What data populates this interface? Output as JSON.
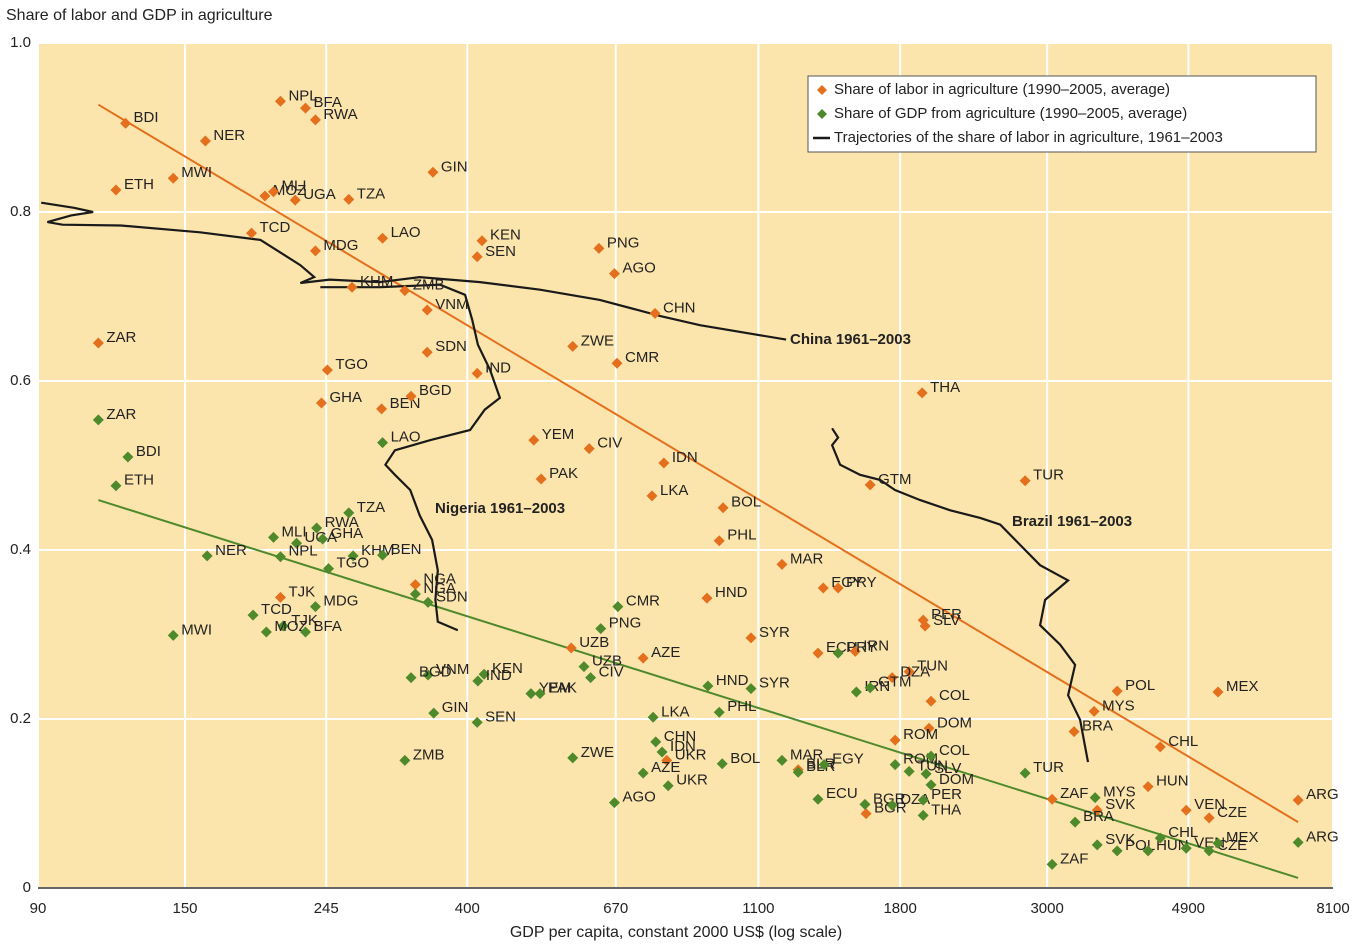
{
  "chart_data": {
    "type": "scatter",
    "y_label": "Share of labor and GDP in agriculture",
    "x_label": "GDP per capita, constant 2000 US$ (log scale)",
    "x_log": true,
    "xlim": [
      90,
      8100
    ],
    "xticks": [
      90,
      150,
      245,
      400,
      670,
      1100,
      1800,
      3000,
      4900,
      8100
    ],
    "ylim": [
      0,
      1
    ],
    "yticks": [
      0,
      0.2,
      0.4,
      0.6,
      0.8,
      {
        "value": 1,
        "label": "1.0"
      }
    ],
    "grid": true,
    "background": "#fce5ad",
    "legend": "top-right",
    "series": [
      {
        "name": "Share of labor in agriculture (1990–2005, average)",
        "color": "#e4701e",
        "labels": [
          "BDI",
          "NPL",
          "BFA",
          "RWA",
          "NER",
          "ETH",
          "MWI",
          "MOZ",
          "MLI",
          "UGA",
          "TZA",
          "GIN",
          "TCD",
          "MDG",
          "LAO",
          "KEN",
          "SEN",
          "PNG",
          "AGO",
          "KHM",
          "ZMB",
          "VNM",
          "CHN",
          "ZAR",
          "SDN",
          "ZWE",
          "CMR",
          "IND",
          "TGO",
          "THA",
          "GHA",
          "BEN",
          "BGD",
          "YEM",
          "CIV",
          "IDN",
          "PAK",
          "GTM",
          "TUR",
          "LKA",
          "BOL",
          "PHL",
          "MAR",
          "EGY",
          "PRY",
          "HND",
          "NGA",
          "TJK",
          "PER",
          "SLV",
          "SYR",
          "UZB",
          "AZE",
          "ECU",
          "IRN",
          "TUN",
          "DZA",
          "COL",
          "DOM",
          "ROM",
          "MYS",
          "POL",
          "MEX",
          "BRA",
          "CHL",
          "BLR",
          "UKR",
          "HUN",
          "ZAF",
          "SVK",
          "VEN",
          "CZE",
          "ARG",
          "BGR"
        ],
        "x": [
          122,
          209,
          228,
          236,
          161,
          118,
          144,
          198,
          204,
          220,
          265,
          355,
          189,
          236,
          298,
          421,
          414,
          632,
          667,
          268,
          322,
          348,
          768,
          111,
          348,
          577,
          673,
          414,
          246,
          1943,
          241,
          297,
          329,
          504,
          611,
          792,
          517,
          1622,
          2779,
          760,
          973,
          960,
          1194,
          1378,
          1451,
          920,
          334,
          209,
          1950,
          1963,
          1072,
          574,
          737,
          1353,
          1540,
          1857,
          1751,
          2004,
          1990,
          1769,
          3532,
          3826,
          5432,
          3294,
          4444,
          1263,
          800,
          4260,
          3052,
          3570,
          4864,
          5267,
          7176,
          1599
        ],
        "values": [
          0.905,
          0.931,
          0.923,
          0.909,
          0.884,
          0.826,
          0.84,
          0.819,
          0.824,
          0.814,
          0.815,
          0.847,
          0.775,
          0.754,
          0.769,
          0.766,
          0.747,
          0.757,
          0.727,
          0.711,
          0.707,
          0.684,
          0.68,
          0.645,
          0.634,
          0.641,
          0.621,
          0.609,
          0.613,
          0.586,
          0.574,
          0.567,
          0.582,
          0.53,
          0.52,
          0.503,
          0.484,
          0.477,
          0.482,
          0.464,
          0.45,
          0.411,
          0.383,
          0.355,
          0.355,
          0.343,
          0.359,
          0.344,
          0.317,
          0.31,
          0.296,
          0.284,
          0.272,
          0.278,
          0.28,
          0.256,
          0.249,
          0.221,
          0.189,
          0.175,
          0.209,
          0.233,
          0.232,
          0.185,
          0.167,
          0.14,
          0.151,
          0.12,
          0.105,
          0.092,
          0.092,
          0.083,
          0.104,
          0.088
        ]
      },
      {
        "name": "Share of GDP from agriculture (1990–2005, average)",
        "color": "#4e8a2c",
        "labels": [
          "ZAR",
          "BDI",
          "ETH",
          "NER",
          "MWI",
          "UGA",
          "RWA",
          "TZA",
          "MLI",
          "GHA",
          "NPL",
          "KHM",
          "BEN",
          "TGO",
          "LAO",
          "TCD",
          "TJK",
          "MOZ",
          "MDG",
          "BFA",
          "SDN",
          "NGA",
          "CMR",
          "PNG",
          "UZB",
          "CIV",
          "KEN",
          "IND",
          "VNM",
          "BGD",
          "GIN",
          "YEM",
          "PAK",
          "SEN",
          "ZMB",
          "ZWE",
          "HND",
          "SYR",
          "PHL",
          "LKA",
          "CHN",
          "IDN",
          "UKR",
          "AZE",
          "AGO",
          "BOL",
          "MAR",
          "BLR",
          "EGY",
          "ECU",
          "PRY",
          "IRN",
          "GTM",
          "ROM",
          "BGR",
          "DZA",
          "TUN",
          "PER",
          "COL",
          "SLV",
          "DOM",
          "THA",
          "TUR",
          "BRA",
          "ZAF",
          "MYS",
          "SVK",
          "POL",
          "HUN",
          "CHL",
          "VEN",
          "CZE",
          "MEX",
          "ARG"
        ],
        "x": [
          111,
          123,
          118,
          162,
          144,
          221,
          237,
          265,
          204,
          242,
          209,
          269,
          298,
          247,
          298,
          190,
          211,
          199,
          236,
          228,
          349,
          334,
          675,
          636,
          600,
          614,
          424,
          415,
          349,
          329,
          356,
          499,
          515,
          414,
          322,
          577,
          923,
          1072,
          960,
          763,
          770,
          787,
          804,
          737,
          667,
          970,
          1194,
          1263,
          1382,
          1353,
          1451,
          1546,
          1622,
          1769,
          1593,
          1751,
          1857,
          1950,
          2004,
          1970,
          2004,
          1950,
          2779,
          3306,
          3052,
          3544,
          3570,
          3826,
          4260,
          4444,
          4864,
          5267,
          5432,
          7176
        ],
        "values": [
          0.554,
          0.51,
          0.476,
          0.393,
          0.299,
          0.408,
          0.426,
          0.444,
          0.415,
          0.413,
          0.392,
          0.393,
          0.394,
          0.378,
          0.527,
          0.323,
          0.31,
          0.303,
          0.333,
          0.303,
          0.338,
          0.348,
          0.333,
          0.307,
          0.262,
          0.249,
          0.253,
          0.245,
          0.252,
          0.249,
          0.207,
          0.23,
          0.23,
          0.196,
          0.151,
          0.154,
          0.239,
          0.236,
          0.208,
          0.202,
          0.173,
          0.161,
          0.121,
          0.136,
          0.101,
          0.147,
          0.151,
          0.137,
          0.146,
          0.105,
          0.278,
          0.232,
          0.237,
          0.146,
          0.099,
          0.098,
          0.138,
          0.104,
          0.156,
          0.135,
          0.122,
          0.086,
          0.136,
          0.078,
          0.028,
          0.107,
          0.051,
          0.044,
          0.044,
          0.059,
          0.047,
          0.044,
          0.053,
          0.054
        ]
      }
    ],
    "trend_lines": [
      {
        "color": "#e4701e",
        "x": [
          111,
          7176
        ],
        "values": [
          0.927,
          0.078
        ]
      },
      {
        "color": "#4e8a2c",
        "x": [
          111,
          7176
        ],
        "values": [
          0.459,
          0.012
        ]
      }
    ],
    "trajectory_legend": "Trajectories of the share of labor in agriculture, 1961–2003",
    "trajectory_color": "#1a1a1a",
    "trajectories": [
      {
        "name": "China 1961–2003",
        "x": [
          91,
          102,
          109,
          101,
          93,
          98,
          120,
          158,
          195,
          224,
          235,
          224,
          248,
          295,
          339,
          418,
          515,
          634,
          781,
          898,
          1211
        ],
        "values": [
          0.811,
          0.805,
          0.8,
          0.796,
          0.788,
          0.785,
          0.784,
          0.776,
          0.767,
          0.737,
          0.723,
          0.716,
          0.72,
          0.717,
          0.723,
          0.717,
          0.708,
          0.696,
          0.677,
          0.666,
          0.649
        ]
      },
      {
        "name": "Nigeria 1961–2003",
        "x": [
          240,
          295,
          364,
          397,
          407,
          415,
          433,
          448,
          425,
          404,
          352,
          311,
          301,
          311,
          328,
          339,
          354,
          361,
          358,
          361,
          387
        ],
        "values": [
          0.711,
          0.711,
          0.714,
          0.702,
          0.672,
          0.643,
          0.613,
          0.58,
          0.566,
          0.542,
          0.53,
          0.518,
          0.501,
          0.489,
          0.471,
          0.441,
          0.412,
          0.376,
          0.341,
          0.315,
          0.305
        ]
      },
      {
        "name": "Brazil 1961–2003",
        "x": [
          1421,
          1451,
          1421,
          1461,
          1566,
          1679,
          1768,
          1930,
          2142,
          2377,
          2548,
          2731,
          2927,
          3226,
          2979,
          2927,
          3138,
          3306,
          3226,
          3364,
          3458
        ],
        "values": [
          0.544,
          0.533,
          0.524,
          0.501,
          0.489,
          0.483,
          0.471,
          0.459,
          0.447,
          0.438,
          0.43,
          0.406,
          0.382,
          0.364,
          0.341,
          0.311,
          0.288,
          0.264,
          0.228,
          0.199,
          0.149
        ]
      }
    ]
  }
}
